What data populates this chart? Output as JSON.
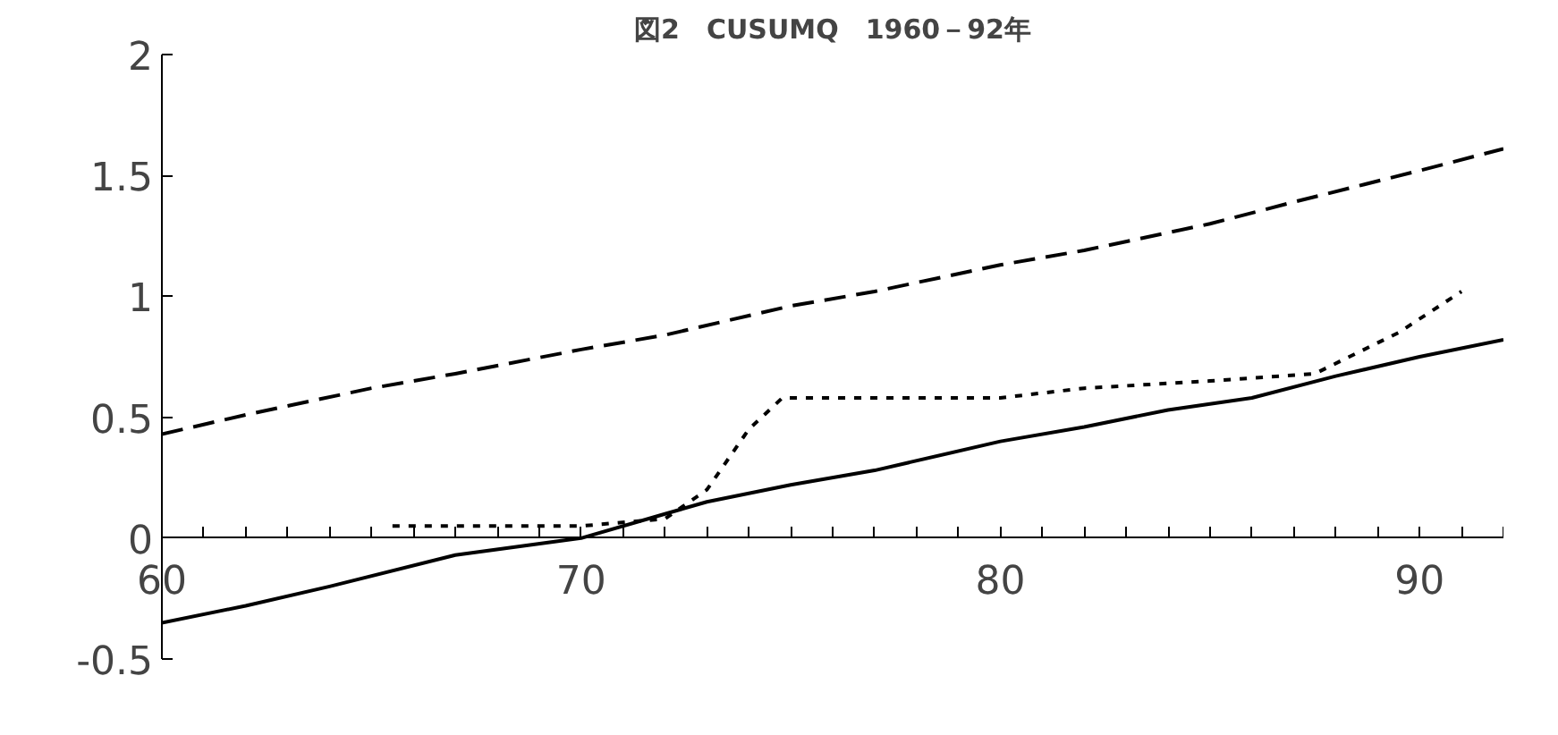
{
  "chart_data": {
    "type": "line",
    "title": "図2　CUSUMQ　1960－92年",
    "xlim": [
      60,
      92
    ],
    "ylim": [
      -0.5,
      2
    ],
    "xticks": [
      60,
      {
        "value": 61,
        "label": null
      },
      {
        "value": 62,
        "label": null
      },
      {
        "value": 63,
        "label": null
      },
      {
        "value": 64,
        "label": null
      },
      {
        "value": 65,
        "label": null
      },
      {
        "value": 66,
        "label": null
      },
      {
        "value": 67,
        "label": null
      },
      {
        "value": 68,
        "label": null
      },
      {
        "value": 69,
        "label": null
      },
      70,
      {
        "value": 71,
        "label": null
      },
      {
        "value": 72,
        "label": null
      },
      {
        "value": 73,
        "label": null
      },
      {
        "value": 74,
        "label": null
      },
      {
        "value": 75,
        "label": null
      },
      {
        "value": 76,
        "label": null
      },
      {
        "value": 77,
        "label": null
      },
      {
        "value": 78,
        "label": null
      },
      {
        "value": 79,
        "label": null
      },
      80,
      {
        "value": 81,
        "label": null
      },
      {
        "value": 82,
        "label": null
      },
      {
        "value": 83,
        "label": null
      },
      {
        "value": 84,
        "label": null
      },
      {
        "value": 85,
        "label": null
      },
      {
        "value": 86,
        "label": null
      },
      {
        "value": 87,
        "label": null
      },
      {
        "value": 88,
        "label": null
      },
      {
        "value": 89,
        "label": null
      },
      90,
      {
        "value": 91,
        "label": null
      },
      {
        "value": 92,
        "label": null
      }
    ],
    "yticks": [
      {
        "value": -0.5,
        "label": "-0.5"
      },
      0,
      0.5,
      1,
      1.5,
      2
    ],
    "grid": false,
    "marker": "none",
    "series": [
      {
        "color": "#000000",
        "line_style": "dashed",
        "x": [
          60,
          62,
          65,
          67,
          70,
          72,
          75,
          77,
          80,
          82,
          85,
          87,
          90,
          92
        ],
        "values": [
          0.43,
          0.51,
          0.62,
          0.68,
          0.78,
          0.84,
          0.96,
          1.02,
          1.13,
          1.19,
          1.3,
          1.39,
          1.52,
          1.61
        ]
      },
      {
        "color": "#000000",
        "line_style": "solid",
        "x": [
          60,
          62,
          64,
          67,
          70,
          72,
          73,
          75,
          77,
          80,
          82,
          84,
          86,
          88,
          90,
          92
        ],
        "values": [
          -0.35,
          -0.28,
          -0.2,
          -0.07,
          0.0,
          0.1,
          0.15,
          0.22,
          0.28,
          0.4,
          0.46,
          0.53,
          0.58,
          0.67,
          0.75,
          0.82
        ]
      },
      {
        "color": "#000000",
        "line_style": "dotted",
        "x": [
          65.5,
          68,
          70,
          72,
          73,
          74,
          74.8,
          77,
          80,
          82,
          85,
          87.5,
          89.5,
          91
        ],
        "values": [
          0.05,
          0.05,
          0.05,
          0.08,
          0.2,
          0.45,
          0.58,
          0.58,
          0.58,
          0.62,
          0.65,
          0.68,
          0.85,
          1.02
        ]
      }
    ]
  }
}
